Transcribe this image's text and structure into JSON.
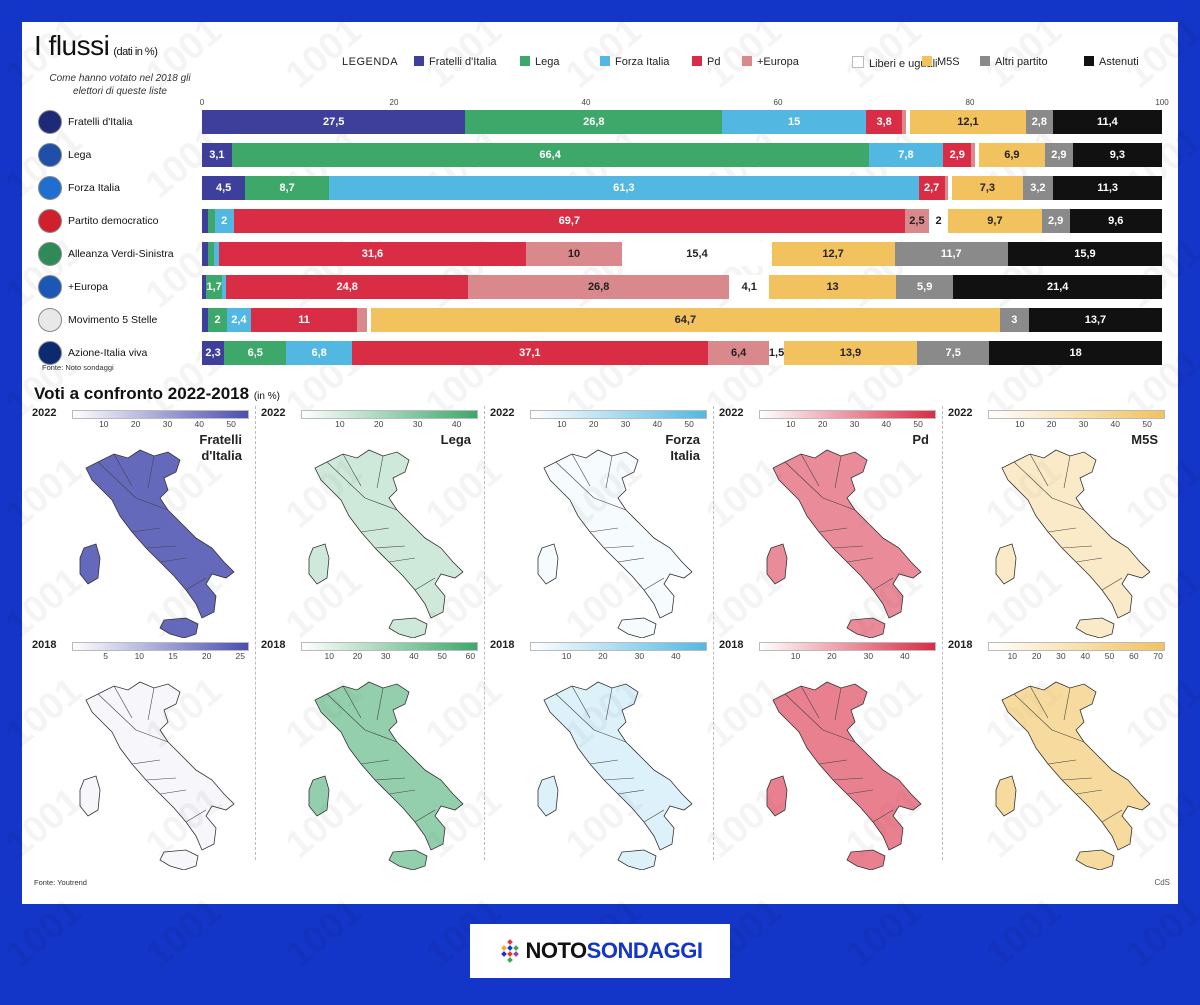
{
  "header": {
    "title": "I flussi",
    "title_note": "(dati in %)",
    "subtitle": "Come hanno votato nel 2018 gli elettori di queste liste",
    "legend_title": "LEGENDA"
  },
  "colors": {
    "Fratelli d'Italia": "#3d3f9b",
    "Lega": "#3da86a",
    "Forza Italia": "#52b8e2",
    "Pd": "#d92c45",
    "+Europa": "#d9898c",
    "Liberi e uguali": "#ffffff",
    "M5S": "#f2c25e",
    "Altri partito": "#8a8a8a",
    "Astenuti": "#111111"
  },
  "chart_data": [
    {
      "type": "bar",
      "title": "I flussi",
      "subtitle": "(dati in %)",
      "orientation": "horizontal",
      "stacked": true,
      "xlim": [
        0,
        100
      ],
      "x_ticks": [
        "0",
        "20",
        "40",
        "60",
        "80",
        "100"
      ],
      "categories": [
        "Fratelli d'Italia",
        "Lega",
        "Forza Italia",
        "Partito democratico",
        "Alleanza Verdi-Sinistra",
        "+Europa",
        "Movimento 5 Stelle",
        "Azione-Italia viva"
      ],
      "series": [
        {
          "name": "Fratelli d'Italia",
          "values": [
            27.5,
            3.1,
            4.5,
            0.6,
            0.6,
            0.4,
            0.6,
            2.3
          ]
        },
        {
          "name": "Lega",
          "values": [
            26.8,
            66.4,
            8.7,
            0.7,
            0.6,
            1.7,
            2,
            6.5
          ]
        },
        {
          "name": "Forza Italia",
          "values": [
            15,
            7.8,
            61.3,
            2,
            0.6,
            0.4,
            2.4,
            6.8
          ]
        },
        {
          "name": "Pd",
          "values": [
            3.8,
            2.9,
            2.7,
            69.7,
            31.6,
            24.8,
            11,
            37.1
          ]
        },
        {
          "name": "+Europa",
          "values": [
            0.4,
            0.4,
            0.4,
            2.5,
            10,
            26.8,
            1,
            6.4
          ]
        },
        {
          "name": "Liberi e uguali",
          "values": [
            0.4,
            0.4,
            0.4,
            2,
            15.4,
            4.1,
            0.4,
            1.5
          ]
        },
        {
          "name": "M5S",
          "values": [
            12.1,
            6.9,
            7.3,
            9.7,
            12.7,
            13,
            64.7,
            13.9
          ]
        },
        {
          "name": "Altri partito",
          "values": [
            2.8,
            2.9,
            3.2,
            2.9,
            11.7,
            5.9,
            3,
            7.5
          ]
        },
        {
          "name": "Astenuti",
          "values": [
            11.4,
            9.3,
            11.3,
            9.6,
            15.9,
            21.4,
            13.7,
            18
          ]
        }
      ],
      "data_labels": [
        [
          "27,5",
          "26,8",
          "15",
          "3,8",
          "",
          "",
          "12,1",
          "2,8",
          "11,4"
        ],
        [
          "3,1",
          "66,4",
          "7,8",
          "2,9",
          "",
          "",
          "6,9",
          "2,9",
          "9,3"
        ],
        [
          "4,5",
          "8,7",
          "61,3",
          "2,7",
          "",
          "",
          "7,3",
          "3,2",
          "11,3"
        ],
        [
          "",
          "",
          "2",
          "69,7",
          "2,5",
          "2",
          "9,7",
          "2,9",
          "9,6"
        ],
        [
          "",
          "",
          "",
          "31,6",
          "10",
          "15,4",
          "12,7",
          "11,7",
          "15,9"
        ],
        [
          "",
          "1,7",
          "",
          "24,8",
          "26,8",
          "4,1",
          "13",
          "5,9",
          "21,4"
        ],
        [
          "",
          "2",
          "2,4",
          "11",
          "",
          "",
          "64,7",
          "3",
          "13,7"
        ],
        [
          "2,3",
          "6,5",
          "6,8",
          "37,1",
          "6,4",
          "1,5",
          "13,9",
          "7,5",
          "18"
        ]
      ],
      "source": "Fonte: Noto sondaggi"
    },
    {
      "type": "heatmap",
      "title": "Voti a confronto 2022-2018",
      "subtitle": "(in %)",
      "maps": [
        {
          "year": "2022",
          "party": "Fratelli d'Italia",
          "color": "#4a4fb0",
          "scale_ticks": [
            "10",
            "20",
            "30",
            "40",
            "50"
          ],
          "scale_max": 55,
          "intensity": 0.85
        },
        {
          "year": "2022",
          "party": "Lega",
          "color": "#3da86a",
          "scale_ticks": [
            "10",
            "20",
            "30",
            "40"
          ],
          "scale_max": 45,
          "intensity": 0.25
        },
        {
          "year": "2022",
          "party": "Forza Italia",
          "color": "#52b8e2",
          "scale_ticks": [
            "10",
            "20",
            "30",
            "40",
            "50"
          ],
          "scale_max": 55,
          "intensity": 0.05
        },
        {
          "year": "2022",
          "party": "Pd",
          "color": "#d92c45",
          "scale_ticks": [
            "10",
            "20",
            "30",
            "40",
            "50"
          ],
          "scale_max": 55,
          "intensity": 0.55
        },
        {
          "year": "2022",
          "party": "M5S",
          "color": "#f2c25e",
          "scale_ticks": [
            "10",
            "20",
            "30",
            "40",
            "50"
          ],
          "scale_max": 55,
          "intensity": 0.35
        },
        {
          "year": "2018",
          "party": "Fratelli d'Italia",
          "color": "#4a4fb0",
          "scale_ticks": [
            "5",
            "10",
            "15",
            "20",
            "25"
          ],
          "scale_max": 26,
          "intensity": 0.05
        },
        {
          "year": "2018",
          "party": "Lega",
          "color": "#3da86a",
          "scale_ticks": [
            "10",
            "20",
            "30",
            "40",
            "50",
            "60"
          ],
          "scale_max": 62,
          "intensity": 0.55
        },
        {
          "year": "2018",
          "party": "Forza Italia",
          "color": "#52b8e2",
          "scale_ticks": [
            "10",
            "20",
            "30",
            "40"
          ],
          "scale_max": 48,
          "intensity": 0.2
        },
        {
          "year": "2018",
          "party": "Pd",
          "color": "#d92c45",
          "scale_ticks": [
            "10",
            "20",
            "30",
            "40"
          ],
          "scale_max": 48,
          "intensity": 0.6
        },
        {
          "year": "2018",
          "party": "M5S",
          "color": "#f2c25e",
          "scale_ticks": [
            "10",
            "20",
            "30",
            "40",
            "50",
            "60",
            "70"
          ],
          "scale_max": 72,
          "intensity": 0.6
        }
      ],
      "source": "Fonte: Youtrend"
    }
  ],
  "map_labels": {
    "Fratelli d'Italia": [
      "Fratelli",
      "d'Italia"
    ],
    "Lega": [
      "Lega"
    ],
    "Forza Italia": [
      "Forza",
      "Italia"
    ],
    "Pd": [
      "Pd"
    ],
    "M5S": [
      "M5S"
    ]
  },
  "footer": {
    "maps_title": "Voti a confronto 2022-2018",
    "maps_title_note": "(in %)",
    "maps_source": "Fonte: Youtrend",
    "credit": "CdS",
    "flows_source": "Fonte: Noto sondaggi"
  },
  "brand": {
    "part1": "NOTO",
    "part2": "SONDAGGI",
    "icon": "diamond-logo-icon"
  },
  "watermark": "1001"
}
